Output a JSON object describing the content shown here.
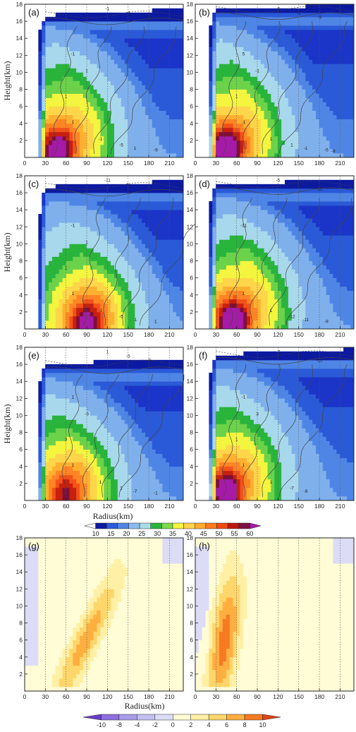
{
  "chart_data": {
    "type": "heatmap",
    "description_axes": {
      "xlabel": "Radius(km)",
      "ylabel": "Height(km)",
      "xlim": [
        0,
        230
      ],
      "ylim": [
        0,
        18
      ],
      "xticks": [
        0,
        30,
        60,
        90,
        120,
        150,
        180,
        210
      ],
      "yticks": [
        2,
        4,
        6,
        8,
        10,
        12,
        14,
        16,
        18
      ]
    },
    "panels": [
      {
        "label": "(a)",
        "core_r": 48,
        "core_z": 0.9,
        "top_z": 16.6,
        "green_r": 205,
        "yellow_r": 165,
        "shift": 0,
        "max": 58,
        "contour_labels": [
          "-1",
          "-5",
          "5",
          "-1",
          "1",
          "1",
          "1",
          "-1",
          "-5",
          "1",
          "-9"
        ]
      },
      {
        "label": "(b)",
        "core_r": 45,
        "core_z": 0.8,
        "top_z": 17.2,
        "green_r": 200,
        "yellow_r": 160,
        "shift": 0,
        "max": 61,
        "contour_labels": [
          "-5",
          "-1",
          "-9",
          "5",
          "-1",
          "1",
          "-1",
          "1",
          "1",
          "-1",
          "-5",
          "-9"
        ]
      },
      {
        "label": "(c)",
        "core_r": 90,
        "core_z": 0.8,
        "top_z": 16.6,
        "green_r": 215,
        "yellow_r": 175,
        "shift": 10,
        "max": 56,
        "contour_labels": [
          "-11",
          "1",
          "1",
          "-1",
          "1",
          "1",
          "1",
          "-1",
          "-5",
          "-1",
          "1"
        ]
      },
      {
        "label": "(d)",
        "core_r": 55,
        "core_z": 0.8,
        "top_z": 16.8,
        "green_r": 215,
        "yellow_r": 170,
        "shift": 5,
        "max": 60,
        "contour_labels": [
          "-5",
          "-9",
          "-11",
          "-11",
          "1",
          "1",
          "1",
          "1",
          "-12",
          "-11",
          "-9"
        ]
      },
      {
        "label": "(e)",
        "core_r": 60,
        "core_z": 1.0,
        "top_z": 15.9,
        "green_r": 200,
        "yellow_r": 150,
        "shift": 5,
        "max": 52,
        "contour_labels": [
          "1",
          "-5",
          "-9",
          "1",
          "-3",
          "3",
          "1",
          "1",
          "1",
          "-7",
          "-1"
        ]
      },
      {
        "label": "(f)",
        "core_r": 45,
        "core_z": 1.2,
        "top_z": 17.0,
        "green_r": 215,
        "yellow_r": 155,
        "shift": 0,
        "max": 58,
        "contour_labels": [
          "-7",
          "-9",
          "-11",
          "-1",
          "3",
          "1",
          "1",
          "1",
          "-7",
          "-9"
        ]
      },
      {
        "label": "(g)",
        "diff": true,
        "tilt_r0": 60,
        "tilt_r1": 135,
        "peak": 6.5
      },
      {
        "label": "(h)",
        "diff": true,
        "tilt_r0": 35,
        "tilt_r1": 55,
        "peak": 8.5
      }
    ],
    "colorbar_wind": {
      "levels": [
        10,
        15,
        20,
        25,
        30,
        35,
        40,
        45,
        50,
        55,
        60
      ],
      "colors": [
        "#ffffff",
        "#0d1aa0",
        "#1e4fd4",
        "#4f86e6",
        "#8cb9ee",
        "#a8dce8",
        "#22b43a",
        "#7bd94a",
        "#f5f53c",
        "#ffd24a",
        "#ffac2e",
        "#ff7a1e",
        "#f04a14",
        "#c0180e",
        "#7a1040",
        "#b01ab0"
      ]
    },
    "colorbar_diff": {
      "levels": [
        -10,
        -8,
        -4,
        -2,
        0,
        2,
        4,
        6,
        8,
        10
      ],
      "colors": [
        "#6a3fc8",
        "#8d70dd",
        "#a99cea",
        "#c3c0f0",
        "#dcdcf6",
        "#fffcd6",
        "#fff0a6",
        "#ffd66b",
        "#ffae40",
        "#f57a22",
        "#e44414"
      ]
    }
  }
}
